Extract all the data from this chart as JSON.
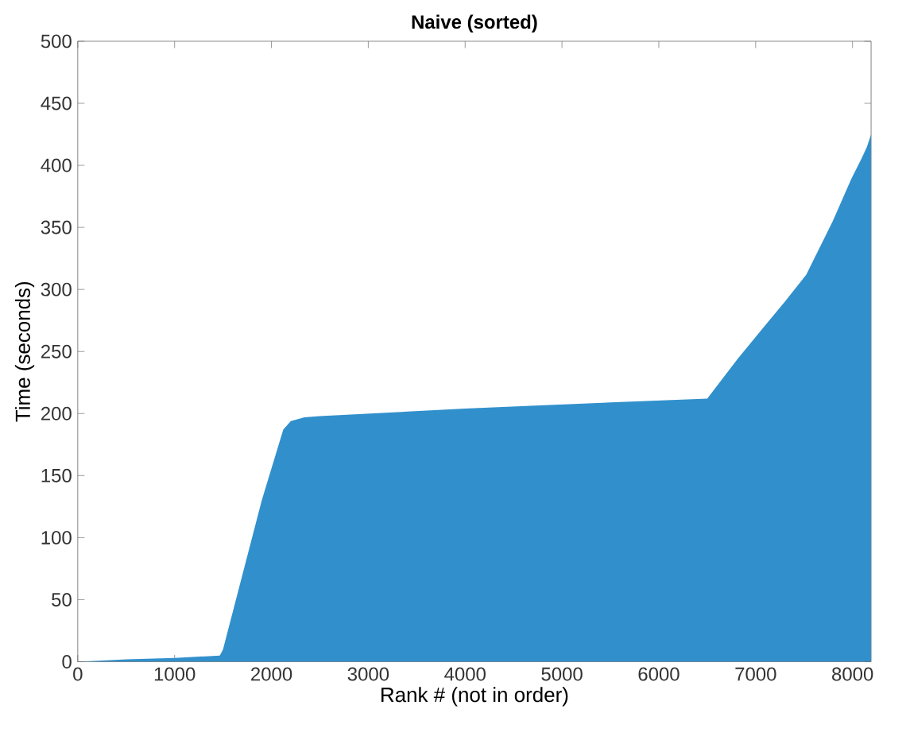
{
  "chart_data": {
    "type": "area",
    "title": "Naive (sorted)",
    "xlabel": "Rank # (not in order)",
    "ylabel": "Time (seconds)",
    "x": [
      0,
      500,
      1000,
      1467,
      1500,
      1700,
      1900,
      2122,
      2200,
      2340,
      2500,
      4000,
      5500,
      6500,
      6814,
      7087,
      7300,
      7523,
      7796,
      7987,
      8096,
      8150,
      8192
    ],
    "series": [
      {
        "color": "#3190cc",
        "values": [
          0,
          2,
          3,
          5,
          10,
          70,
          130,
          187,
          194,
          197,
          198,
          204,
          209,
          212,
          244,
          270,
          290,
          312,
          355,
          389,
          406,
          415,
          425
        ]
      }
    ],
    "xlim": [
      0,
      8192
    ],
    "ylim": [
      0,
      500
    ],
    "xticks": [
      0,
      1000,
      2000,
      3000,
      4000,
      5000,
      6000,
      7000,
      8000
    ],
    "yticks": [
      0,
      50,
      100,
      150,
      200,
      250,
      300,
      350,
      400,
      450,
      500
    ],
    "grid": false
  }
}
